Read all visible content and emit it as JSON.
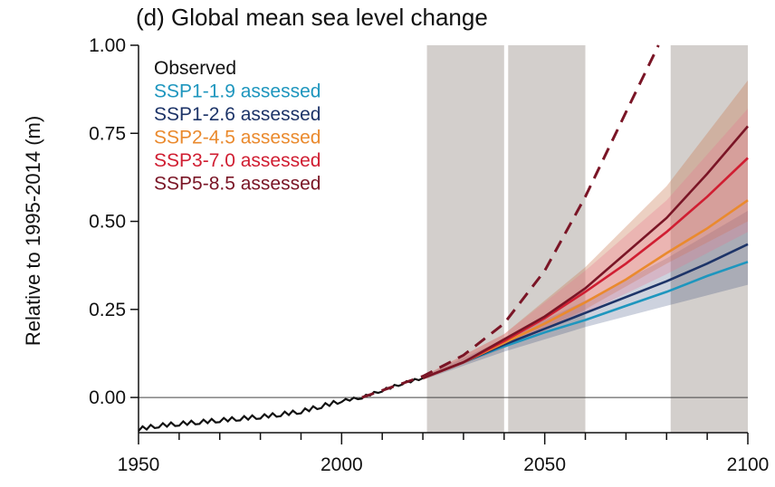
{
  "chart_data": {
    "type": "line",
    "title": "(d) Global mean sea level change",
    "xlabel": "",
    "ylabel": "Relative to 1995-2014 (m)",
    "xlim": [
      1950,
      2100
    ],
    "ylim": [
      -0.1,
      1.0
    ],
    "x_ticks": [
      "1950",
      "2000",
      "2050",
      "2100"
    ],
    "y_ticks": [
      "0.00",
      "0.25",
      "0.50",
      "0.75",
      "1.00"
    ],
    "reference_line": 0,
    "shaded_periods": [
      [
        2021,
        2040
      ],
      [
        2041,
        2060
      ],
      [
        2081,
        2100
      ]
    ],
    "legend": {
      "position": "top-left",
      "entries": [
        {
          "label": "Observed",
          "color": "#111111"
        },
        {
          "label": "SSP1-1.9 assessed",
          "color": "#1e96be"
        },
        {
          "label": "SSP1-2.6 assessed",
          "color": "#1d3468"
        },
        {
          "label": "SSP2-4.5 assessed",
          "color": "#ea8a2e"
        },
        {
          "label": "SSP3-7.0 assessed",
          "color": "#d01e32"
        },
        {
          "label": "SSP5-8.5 assessed",
          "color": "#7a1526"
        }
      ]
    },
    "observed": {
      "x": [
        1950,
        1955,
        1960,
        1965,
        1970,
        1975,
        1980,
        1985,
        1990,
        1995,
        2000,
        2005,
        2010,
        2015,
        2020
      ],
      "y": [
        -0.09,
        -0.08,
        -0.075,
        -0.07,
        -0.065,
        -0.06,
        -0.055,
        -0.048,
        -0.04,
        -0.025,
        -0.01,
        0.0,
        0.02,
        0.04,
        0.055
      ]
    },
    "projection_x": [
      2020,
      2030,
      2040,
      2050,
      2060,
      2070,
      2080,
      2090,
      2100
    ],
    "series": [
      {
        "key": "ssp119",
        "color": "#1e96be",
        "values": [
          0.055,
          0.1,
          0.145,
          0.185,
          0.22,
          0.26,
          0.3,
          0.345,
          0.385
        ]
      },
      {
        "key": "ssp126",
        "color": "#1d3468",
        "values": [
          0.055,
          0.1,
          0.15,
          0.195,
          0.24,
          0.285,
          0.33,
          0.38,
          0.435
        ]
      },
      {
        "key": "ssp245",
        "color": "#ea8a2e",
        "values": [
          0.055,
          0.1,
          0.155,
          0.21,
          0.27,
          0.335,
          0.41,
          0.48,
          0.56
        ]
      },
      {
        "key": "ssp370",
        "color": "#d01e32",
        "values": [
          0.055,
          0.1,
          0.16,
          0.225,
          0.3,
          0.38,
          0.47,
          0.57,
          0.68
        ]
      },
      {
        "key": "ssp585",
        "color": "#7a1526",
        "values": [
          0.055,
          0.1,
          0.165,
          0.23,
          0.31,
          0.41,
          0.51,
          0.635,
          0.77
        ]
      }
    ],
    "high_end_storyline": {
      "color": "#7a1526",
      "style": "dashed",
      "x": [
        2005,
        2010,
        2020,
        2030,
        2040,
        2050,
        2060,
        2070,
        2078
      ],
      "y": [
        0.0,
        0.02,
        0.06,
        0.12,
        0.21,
        0.36,
        0.57,
        0.81,
        1.0
      ]
    },
    "bands": [
      {
        "key": "ssp126",
        "color": "#1d3468",
        "opacity": 0.22,
        "x": [
          2020,
          2040,
          2060,
          2080,
          2100
        ],
        "lower": [
          0.05,
          0.13,
          0.2,
          0.26,
          0.32
        ],
        "upper": [
          0.06,
          0.165,
          0.275,
          0.395,
          0.53
        ]
      },
      {
        "key": "ssp585",
        "color": "#c87850",
        "opacity": 0.35,
        "x": [
          2020,
          2040,
          2060,
          2080,
          2100
        ],
        "lower": [
          0.05,
          0.14,
          0.25,
          0.38,
          0.5
        ],
        "upper": [
          0.06,
          0.18,
          0.37,
          0.6,
          0.9
        ]
      },
      {
        "key": "ssp370",
        "color": "#e87890",
        "opacity": 0.3,
        "x": [
          2020,
          2040,
          2060,
          2080,
          2100
        ],
        "lower": [
          0.05,
          0.14,
          0.24,
          0.35,
          0.47
        ],
        "upper": [
          0.06,
          0.18,
          0.36,
          0.56,
          0.82
        ]
      }
    ],
    "colors": {
      "period_shade": "#d3cfcc",
      "axis": "#111111",
      "zero_line": "#444444"
    }
  }
}
